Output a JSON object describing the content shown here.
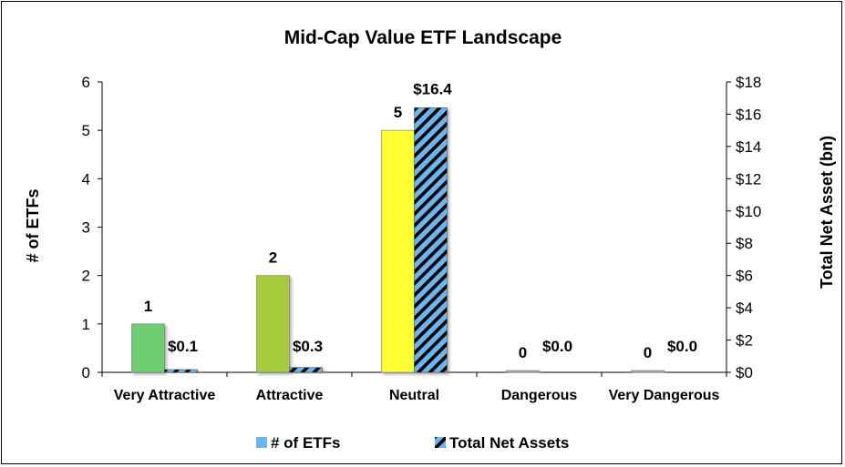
{
  "chart_data": {
    "type": "bar",
    "title": "Mid-Cap Value ETF Landscape",
    "categories": [
      "Very Attractive",
      "Attractive",
      "Neutral",
      "Dangerous",
      "Very Dangerous"
    ],
    "y_left": {
      "label": "# of ETFs",
      "lim": [
        0,
        6
      ],
      "ticks": [
        "0",
        "1",
        "2",
        "3",
        "4",
        "5",
        "6"
      ]
    },
    "y_right": {
      "label": "Total Net Asset (bn)",
      "lim": [
        0,
        18
      ],
      "ticks": [
        "$0",
        "$2",
        "$4",
        "$6",
        "$8",
        "$10",
        "$12",
        "$14",
        "$16",
        "$18"
      ]
    },
    "series": [
      {
        "name": "# of ETFs",
        "axis": "left",
        "values": [
          1,
          2,
          5,
          0,
          0
        ],
        "labels": [
          "1",
          "2",
          "5",
          "0",
          "0"
        ],
        "colors": [
          "#6fce72",
          "#a6cc3e",
          "#ffff33",
          "#b0b0b0",
          "#b0b0b0"
        ]
      },
      {
        "name": "Total Net Assets",
        "axis": "right",
        "values": [
          0.1,
          0.3,
          16.4,
          0.0,
          0.0
        ],
        "labels": [
          "$0.1",
          "$0.3",
          "$16.4",
          "$0.0",
          "$0.0"
        ],
        "colors": [
          "#6db5ee",
          "#000000"
        ]
      }
    ],
    "legend_position": "bottom",
    "grid": false
  }
}
